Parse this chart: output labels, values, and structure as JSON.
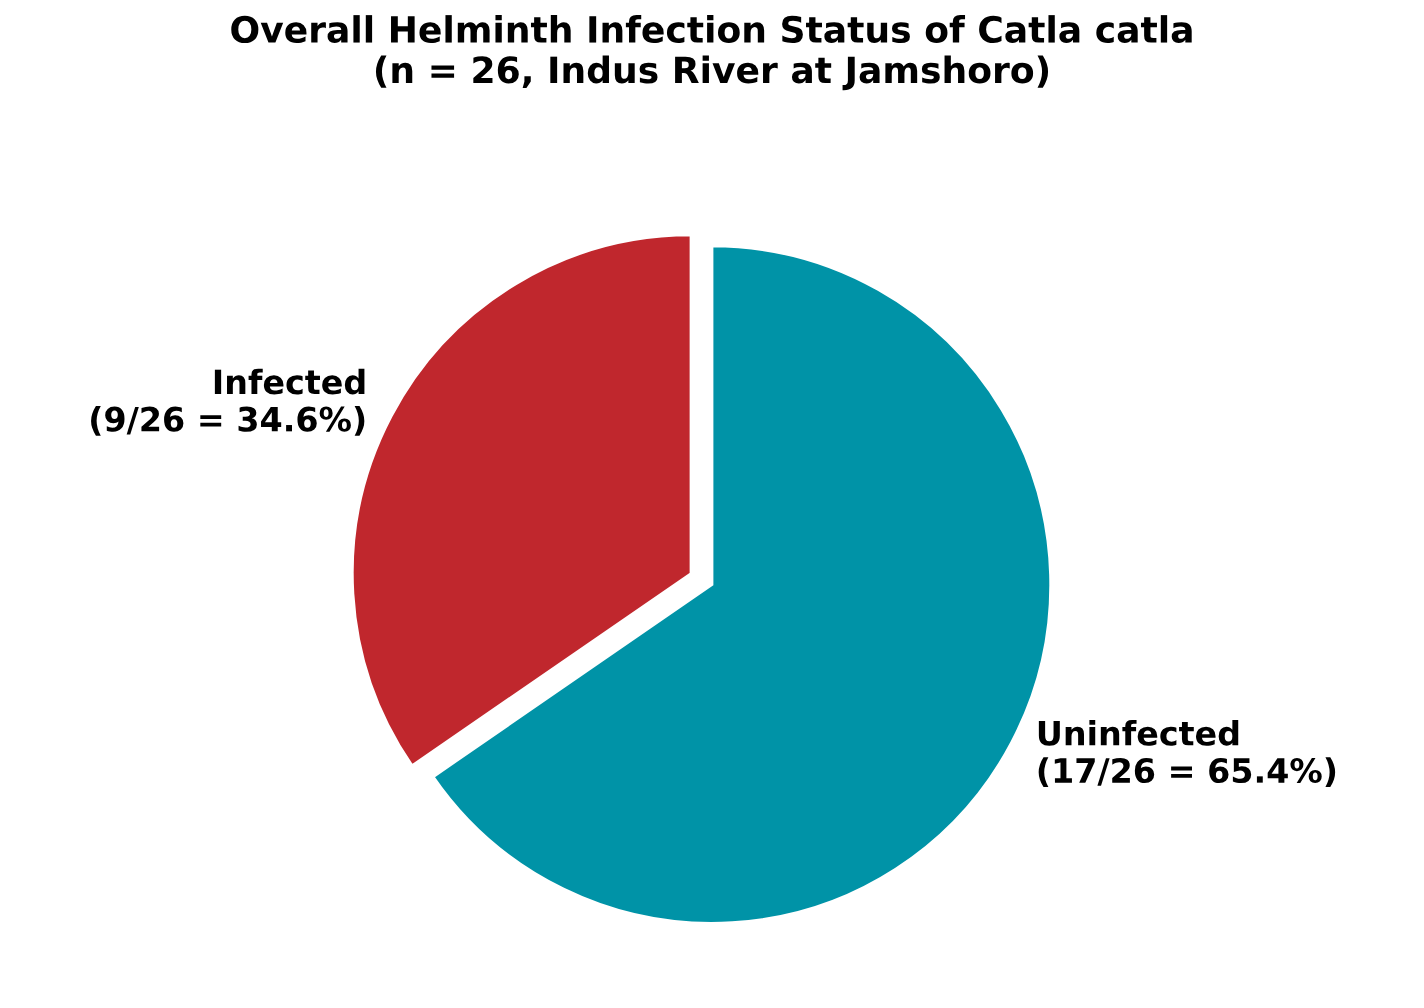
{
  "chart_data": {
    "type": "pie",
    "title": "Overall Helminth Infection Status of Catla catla\n(n = 26, Indus River at Jamshoro)",
    "categories": [
      "Infected\n(9/26 = 34.6%)",
      "Uninfected\n(17/26 = 65.4%)"
    ],
    "values": [
      34.6,
      65.4
    ],
    "colors": [
      "#c0272d",
      "#0093a7"
    ]
  }
}
